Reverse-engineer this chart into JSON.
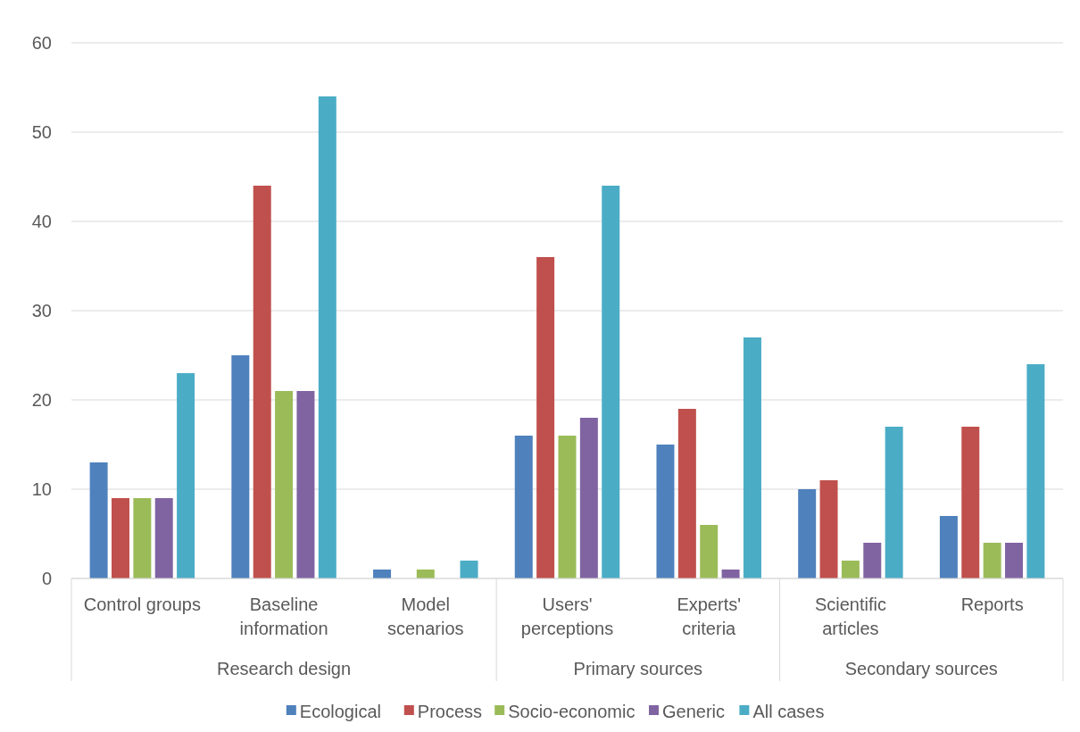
{
  "chart_data": {
    "type": "bar",
    "categories": [
      "Control groups",
      "Baseline information",
      "Model scenarios",
      "Users' perceptions",
      "Experts' criteria",
      "Scientific articles",
      "Reports"
    ],
    "series": [
      {
        "name": "Ecological",
        "color": "#4f81bd",
        "values": [
          13,
          25,
          1,
          16,
          15,
          10,
          7
        ]
      },
      {
        "name": "Process",
        "color": "#c0504d",
        "values": [
          9,
          44,
          0,
          36,
          19,
          11,
          17
        ]
      },
      {
        "name": "Socio-economic",
        "color": "#9bbb59",
        "values": [
          9,
          21,
          1,
          16,
          6,
          2,
          4
        ]
      },
      {
        "name": "Generic",
        "color": "#8064a2",
        "values": [
          9,
          21,
          0,
          18,
          1,
          4,
          4
        ]
      },
      {
        "name": "All cases",
        "color": "#4bacc6",
        "values": [
          23,
          54,
          2,
          44,
          27,
          17,
          24
        ]
      }
    ],
    "annotations": [
      "Research design",
      "Primary sources",
      "Secondary sources"
    ],
    "ylim": [
      0,
      60
    ],
    "yticks": [
      0,
      10,
      20,
      30,
      40,
      50,
      60
    ],
    "grid": "y",
    "legend": "bottom"
  }
}
